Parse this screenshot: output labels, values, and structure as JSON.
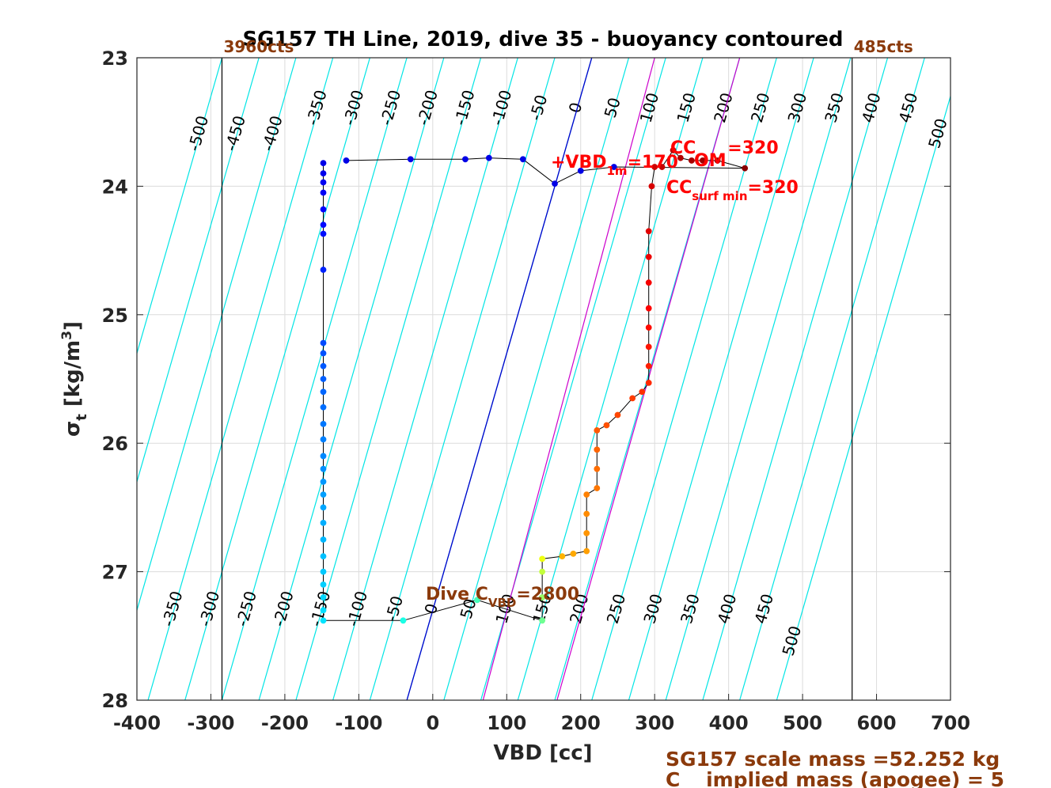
{
  "chart_data": {
    "type": "scatter",
    "title": "SG157 TH Line, 2019, dive 35 - buoyancy contoured",
    "xlabel": "VBD [cc]",
    "ylabel_main": "σ",
    "ylabel_sub": "t",
    "ylabel_unit": " [kg/m",
    "ylabel_sup": "3",
    "ylabel_close": "]",
    "xlim": [
      -400,
      700
    ],
    "ylim": [
      23,
      28
    ],
    "y_reversed": true,
    "grid": true,
    "x_ticks": [
      -400,
      -300,
      -200,
      -100,
      0,
      100,
      200,
      300,
      400,
      500,
      600,
      700
    ],
    "x_tick_labels": [
      "-400",
      "-300",
      "-200",
      "-100",
      "0",
      "100",
      "200",
      "300",
      "400",
      "500",
      "600",
      "700"
    ],
    "y_ticks": [
      23,
      24,
      25,
      26,
      27,
      28
    ],
    "y_tick_labels": [
      "23",
      "24",
      "25",
      "26",
      "27",
      "28"
    ],
    "count_limits": [
      {
        "x": -285,
        "label": "3960cts"
      },
      {
        "x": 567,
        "label": "485cts"
      }
    ],
    "buoyancy_contour_values": [
      -500,
      -450,
      -400,
      -350,
      -300,
      -250,
      -200,
      -150,
      -100,
      -50,
      0,
      50,
      100,
      150,
      200,
      250,
      300,
      350,
      400,
      450,
      500
    ],
    "top_contour_labels": [
      "-500",
      "-450",
      "-400",
      "-350",
      "-300",
      "-250",
      "-200",
      "-150",
      "-100",
      "-50",
      "0",
      "50",
      "100",
      "150",
      "200",
      "250",
      "300",
      "350",
      "400",
      "450",
      "500"
    ],
    "bottom_contour_labels": [
      "-350",
      "-300",
      "-250",
      "-200",
      "-150",
      "-100",
      "-50",
      "0",
      "50",
      "100",
      "150",
      "200",
      "250",
      "300",
      "350",
      "400",
      "450",
      "500"
    ],
    "neutral_line": {
      "x_at_top": 215,
      "x_at_bottom": -35,
      "color": "#0000cc"
    },
    "magenta_lines": [
      {
        "x_at_top": 300,
        "x_at_bottom": 68
      },
      {
        "x_at_top": 415,
        "x_at_bottom": 168
      }
    ],
    "series": [
      {
        "values": [
          [
            -148,
            23.82
          ],
          [
            -148,
            23.9
          ],
          [
            -148,
            23.97
          ],
          [
            -148,
            24.05
          ],
          [
            -148,
            24.18
          ],
          [
            -148,
            24.3
          ],
          [
            -148,
            24.37
          ],
          [
            -148,
            24.65
          ],
          [
            -148,
            25.22
          ],
          [
            -148,
            25.3
          ],
          [
            -148,
            25.4
          ],
          [
            -148,
            25.5
          ],
          [
            -148,
            25.6
          ],
          [
            -148,
            25.72
          ],
          [
            -148,
            25.85
          ],
          [
            -148,
            25.97
          ],
          [
            -148,
            26.1
          ],
          [
            -148,
            26.2
          ],
          [
            -148,
            26.3
          ],
          [
            -148,
            26.4
          ],
          [
            -148,
            26.5
          ],
          [
            -148,
            26.62
          ],
          [
            -148,
            26.75
          ],
          [
            -148,
            26.88
          ],
          [
            -148,
            27.0
          ],
          [
            -148,
            27.1
          ],
          [
            -148,
            27.2
          ],
          [
            -148,
            27.3
          ],
          [
            -148,
            27.38
          ],
          [
            -40,
            27.38
          ],
          [
            60,
            27.22
          ],
          [
            148,
            27.38
          ],
          [
            148,
            27.2
          ],
          [
            148,
            27.0
          ],
          [
            148,
            26.9
          ],
          [
            175,
            26.88
          ],
          [
            190,
            26.86
          ],
          [
            208,
            26.84
          ],
          [
            208,
            26.7
          ],
          [
            208,
            26.55
          ],
          [
            208,
            26.4
          ],
          [
            222,
            26.35
          ],
          [
            222,
            26.2
          ],
          [
            222,
            26.05
          ],
          [
            222,
            25.9
          ],
          [
            235,
            25.86
          ],
          [
            250,
            25.78
          ],
          [
            270,
            25.65
          ],
          [
            283,
            25.6
          ],
          [
            292,
            25.53
          ],
          [
            292,
            25.4
          ],
          [
            292,
            25.25
          ],
          [
            292,
            25.1
          ],
          [
            292,
            24.95
          ],
          [
            292,
            24.75
          ],
          [
            292,
            24.55
          ],
          [
            292,
            24.35
          ],
          [
            296,
            24.0
          ],
          [
            300,
            23.85
          ],
          [
            310,
            23.85
          ],
          [
            325,
            23.72
          ],
          [
            335,
            23.78
          ],
          [
            350,
            23.8
          ],
          [
            365,
            23.8
          ],
          [
            385,
            23.8
          ],
          [
            422,
            23.86
          ],
          [
            245,
            23.85
          ],
          [
            200,
            23.88
          ],
          [
            165,
            23.98
          ],
          [
            122,
            23.79
          ],
          [
            76,
            23.78
          ],
          [
            44,
            23.79
          ],
          [
            -30,
            23.79
          ],
          [
            -117,
            23.8
          ]
        ]
      }
    ],
    "annotations": {
      "vbd_1m_main": "+VBD",
      "vbd_1m_sub": "1m",
      "vbd_1m_value": "=170",
      "vbd_1m_om": "OM",
      "cc_main": "CC",
      "cc_value": "=320",
      "cc_surf_main": "CC",
      "cc_surf_sub": "surf min",
      "cc_surf_value": "=320",
      "dive_c_main": "Dive C",
      "dive_c_sub": "VBD",
      "dive_c_value": "=2800"
    },
    "footer_line1": "SG157 scale mass =52.252 kg",
    "footer_line2_main": "C",
    "footer_line2_rest": " implied mass (apogee) = 5"
  },
  "colors": {
    "contour": "#00e5e5",
    "neutral": "#0000cc",
    "magenta": "#cc00cc",
    "annotation_red": "#ff0000",
    "annotation_brown": "#8b3a0b"
  }
}
